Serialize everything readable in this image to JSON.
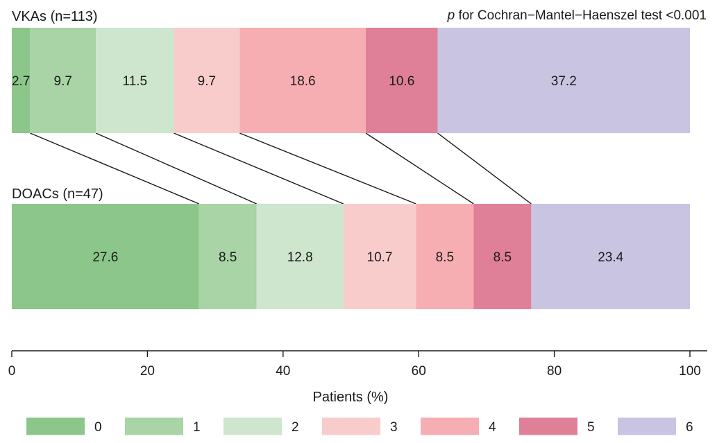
{
  "chart_data": {
    "type": "bar",
    "orientation": "horizontal-stacked-100",
    "annotation_prefix": "p",
    "annotation_text": " for Cochran−Mantel−Haenszel test <0.001",
    "xlabel": "Patients (%)",
    "xlim": [
      0,
      100
    ],
    "xticks": [
      0,
      20,
      40,
      60,
      80,
      100
    ],
    "grid": false,
    "legend_position": "bottom",
    "categories": [
      "0",
      "1",
      "2",
      "3",
      "4",
      "5",
      "6"
    ],
    "colors": [
      "#8cc68a",
      "#a8d4a6",
      "#cde6cd",
      "#f9cccc",
      "#f6aeb2",
      "#e07f98",
      "#c9c4e2"
    ],
    "groups": [
      {
        "label": "VKAs (n=113)",
        "values": [
          2.7,
          9.7,
          11.5,
          9.7,
          18.6,
          10.6,
          37.2
        ]
      },
      {
        "label": "DOACs (n=47)",
        "values": [
          27.6,
          8.5,
          12.8,
          10.7,
          8.5,
          8.5,
          23.4
        ]
      }
    ]
  }
}
